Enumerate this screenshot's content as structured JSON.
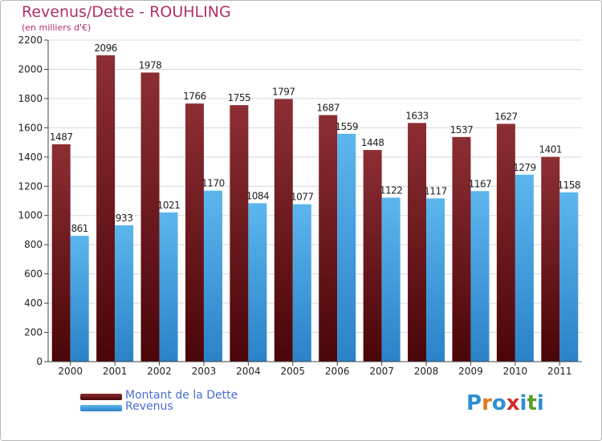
{
  "header": {
    "title": "Revenus/Dette - ROUHLING",
    "subtitle": "(en milliers d'€)"
  },
  "legend": [
    {
      "label": "Montant de la Dette",
      "color": "#7a1f24"
    },
    {
      "label": "Revenus",
      "color": "#3a9ee0"
    }
  ],
  "logo": {
    "text": "Proxiti",
    "letters": [
      "P",
      "r",
      "o",
      "x",
      "i",
      "t",
      "i"
    ],
    "colors": [
      "#2e8fd0",
      "#e07a1a",
      "#2e8fd0",
      "#d0302a",
      "#2e8fd0",
      "#5a9d2a",
      "#2e8fd0"
    ]
  },
  "colors": {
    "debt_top": "#8c2e34",
    "debt_bottom": "#4a0508",
    "rev_top": "#5cb6ee",
    "rev_bottom": "#2a82c8",
    "grid": "#d8d8d8",
    "axis": "#444444"
  },
  "chart_data": {
    "type": "bar",
    "title": "Revenus/Dette - ROUHLING",
    "subtitle": "(en milliers d'€)",
    "categories": [
      "2000",
      "2001",
      "2002",
      "2003",
      "2004",
      "2005",
      "2006",
      "2007",
      "2008",
      "2009",
      "2010",
      "2011"
    ],
    "series": [
      {
        "name": "Montant de la Dette",
        "values": [
          1487,
          2096,
          1978,
          1766,
          1755,
          1797,
          1687,
          1448,
          1633,
          1537,
          1627,
          1401
        ]
      },
      {
        "name": "Revenus",
        "values": [
          861,
          933,
          1021,
          1170,
          1084,
          1077,
          1559,
          1122,
          1117,
          1167,
          1279,
          1158
        ]
      }
    ],
    "ylim": [
      0,
      2200
    ],
    "yticks": [
      0,
      200,
      400,
      600,
      800,
      1000,
      1200,
      1400,
      1600,
      1800,
      2000,
      2200
    ],
    "grid": true,
    "legend_position": "bottom-left"
  }
}
